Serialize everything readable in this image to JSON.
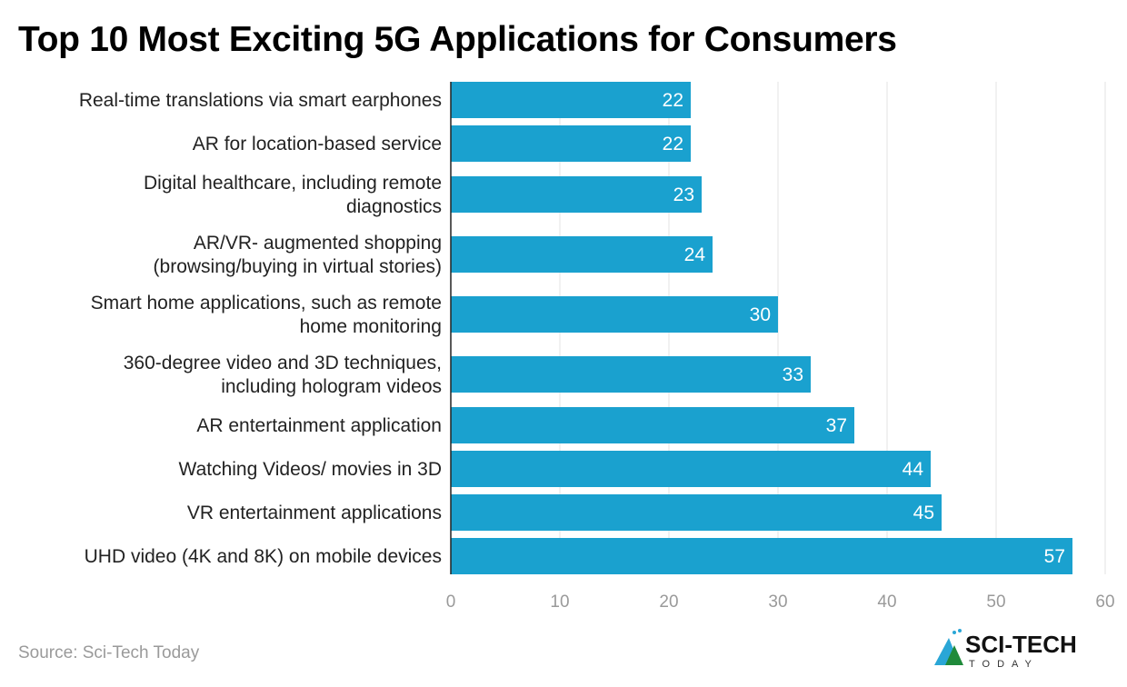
{
  "chart_data": {
    "type": "bar",
    "orientation": "horizontal",
    "title": "Top 10 Most Exciting 5G Applications for Consumers",
    "categories": [
      "Real-time translations via smart earphones",
      "AR for location-based service",
      "Digital healthcare, including remote diagnostics",
      "AR/VR- augmented shopping (browsing/buying in virtual stories)",
      "Smart home applications, such as remote home monitoring",
      "360-degree video and 3D techniques, including hologram videos",
      "AR entertainment application",
      "Watching Videos/ movies in 3D",
      "VR entertainment applications",
      "UHD video (4K and 8K) on mobile devices"
    ],
    "category_lines": [
      [
        "Real-time translations via smart earphones"
      ],
      [
        "AR for location-based service"
      ],
      [
        "Digital healthcare, including remote",
        "diagnostics"
      ],
      [
        "AR/VR- augmented shopping",
        "(browsing/buying in virtual stories)"
      ],
      [
        "Smart home applications, such as remote",
        "home monitoring"
      ],
      [
        "360-degree video and 3D techniques,",
        "including hologram videos"
      ],
      [
        "AR entertainment application"
      ],
      [
        "Watching Videos/ movies in 3D"
      ],
      [
        "VR entertainment applications"
      ],
      [
        "UHD video (4K and 8K) on mobile devices"
      ]
    ],
    "values": [
      22,
      22,
      23,
      24,
      30,
      33,
      37,
      44,
      45,
      57
    ],
    "xlim": [
      0,
      60
    ],
    "xticks": [
      0,
      10,
      20,
      30,
      40,
      50,
      60
    ],
    "grid": true,
    "bar_color": "#1aa1cf",
    "xlabel": "",
    "ylabel": ""
  },
  "source": "Source: Sci-Tech Today",
  "logo": {
    "text": "SCI-TECH",
    "subtext": "TODAY"
  }
}
